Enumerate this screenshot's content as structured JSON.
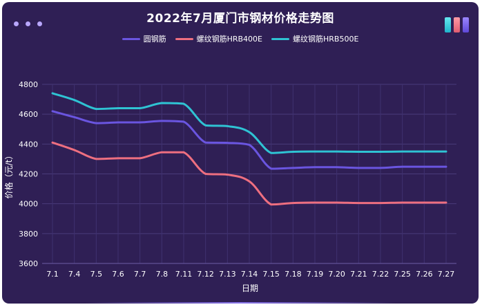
{
  "chart_data": {
    "type": "line",
    "title": "2022年7月厦门市钢材价格走势图",
    "xlabel": "日期",
    "ylabel": "价格（元/t）",
    "ylim": [
      3600,
      4800
    ],
    "yticks": [
      3600,
      3800,
      4000,
      4200,
      4400,
      4600,
      4800
    ],
    "grid": true,
    "legend": "top-center",
    "categories": [
      "7.1",
      "7.4",
      "7.5",
      "7.6",
      "7.7",
      "7.8",
      "7.11",
      "7.12",
      "7.13",
      "7.14",
      "7.15",
      "7.18",
      "7.19",
      "7.20",
      "7.21",
      "7.22",
      "7.25",
      "7.26",
      "7.27"
    ],
    "series": [
      {
        "name": "圆钢筋",
        "color": "#6a55e0",
        "values": [
          4620,
          4580,
          4540,
          4545,
          4545,
          4555,
          4550,
          4410,
          4408,
          4395,
          4235,
          4240,
          4245,
          4245,
          4240,
          4240,
          4248,
          4248,
          4248
        ]
      },
      {
        "name": "螺纹钢筋HRB400E",
        "color": "#ee6f80",
        "values": [
          4410,
          4360,
          4300,
          4305,
          4305,
          4345,
          4345,
          4200,
          4195,
          4150,
          3995,
          4005,
          4008,
          4008,
          4005,
          4005,
          4008,
          4008,
          4008
        ]
      },
      {
        "name": "螺纹钢筋HRB500E",
        "color": "#2fc3d3",
        "values": [
          4740,
          4695,
          4635,
          4640,
          4640,
          4675,
          4670,
          4525,
          4520,
          4480,
          4340,
          4348,
          4350,
          4350,
          4348,
          4348,
          4350,
          4350,
          4350
        ]
      }
    ]
  }
}
